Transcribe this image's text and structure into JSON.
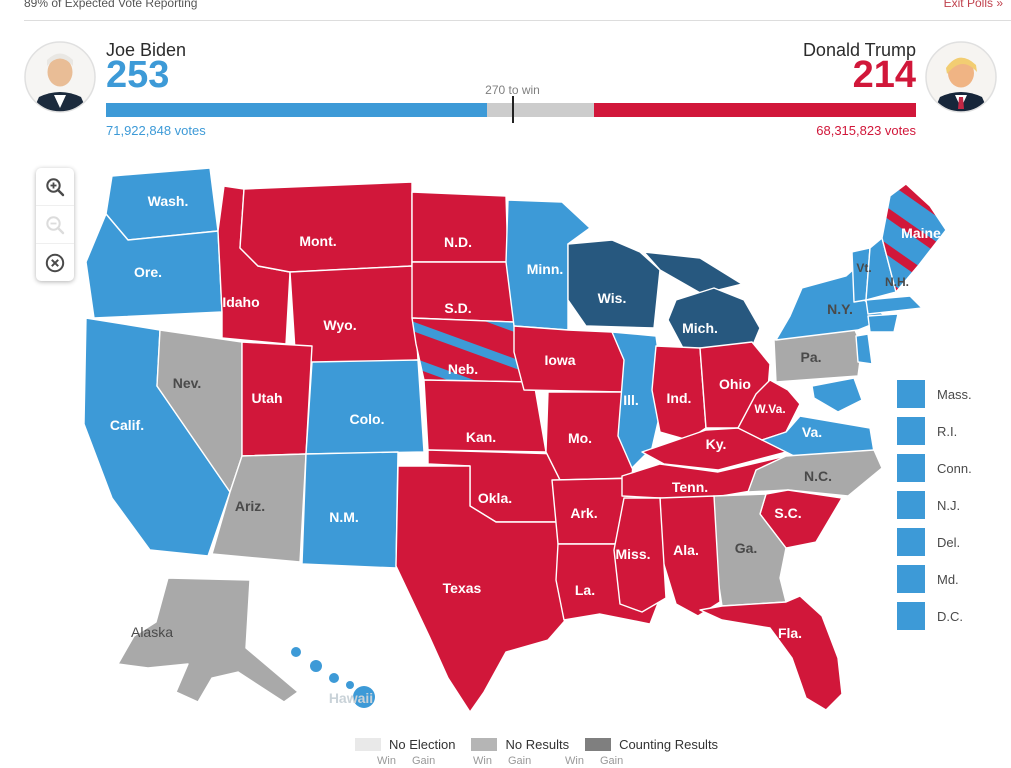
{
  "topbar": {
    "reporting": "89% of Expected Vote Reporting",
    "exit_polls": "Exit Polls »"
  },
  "candidates": {
    "biden": {
      "name": "Joe Biden",
      "electoral": "253",
      "votes": "71,922,848 votes"
    },
    "trump": {
      "name": "Donald Trump",
      "electoral": "214",
      "votes": "68,315,823 votes"
    }
  },
  "bar": {
    "dem": 253,
    "rep": 214,
    "total": 538,
    "threshold": 270,
    "threshold_label": "270 to win"
  },
  "colors": {
    "dem": "#3d9ad7",
    "dem_gain": "#27587f",
    "rep": "#d1173a",
    "map_gray": "#a9a9a9",
    "no_election": "#e9e9e9",
    "no_results": "#b5b5b5",
    "counting_results": "#7f7f7f",
    "bar_undecided": "#cccccc"
  },
  "icons": {
    "zoom_in": "magnifier-plus",
    "zoom_out": "magnifier-minus",
    "reset": "circle-x"
  },
  "map": {
    "states": {
      "wash": {
        "label": "Wash.",
        "status": "dem",
        "label_color": "light"
      },
      "ore": {
        "label": "Ore.",
        "status": "dem",
        "label_color": "light"
      },
      "calif": {
        "label": "Calif.",
        "status": "dem",
        "label_color": "light"
      },
      "nev": {
        "label": "Nev.",
        "status": "gray",
        "label_color": "dark"
      },
      "idaho": {
        "label": "Idaho",
        "status": "rep",
        "label_color": "light"
      },
      "mont": {
        "label": "Mont.",
        "status": "rep",
        "label_color": "light"
      },
      "wyo": {
        "label": "Wyo.",
        "status": "rep",
        "label_color": "light"
      },
      "utah": {
        "label": "Utah",
        "status": "rep",
        "label_color": "light"
      },
      "colo": {
        "label": "Colo.",
        "status": "dem",
        "label_color": "light"
      },
      "ariz": {
        "label": "Ariz.",
        "status": "gray",
        "label_color": "dark"
      },
      "nm": {
        "label": "N.M.",
        "status": "dem",
        "label_color": "light"
      },
      "nd": {
        "label": "N.D.",
        "status": "rep",
        "label_color": "light"
      },
      "sd": {
        "label": "S.D.",
        "status": "rep",
        "label_color": "light"
      },
      "neb": {
        "label": "Neb.",
        "status": "rep_dem_split",
        "label_color": "light"
      },
      "kan": {
        "label": "Kan.",
        "status": "rep",
        "label_color": "light"
      },
      "okla": {
        "label": "Okla.",
        "status": "rep",
        "label_color": "light"
      },
      "texas": {
        "label": "Texas",
        "status": "rep",
        "label_color": "light"
      },
      "minn": {
        "label": "Minn.",
        "status": "dem",
        "label_color": "light"
      },
      "iowa": {
        "label": "Iowa",
        "status": "rep",
        "label_color": "light"
      },
      "mo": {
        "label": "Mo.",
        "status": "rep",
        "label_color": "light"
      },
      "ark": {
        "label": "Ark.",
        "status": "rep",
        "label_color": "light"
      },
      "la": {
        "label": "La.",
        "status": "rep",
        "label_color": "light"
      },
      "wis": {
        "label": "Wis.",
        "status": "dem_gain",
        "label_color": "light"
      },
      "ill": {
        "label": "Ill.",
        "status": "dem",
        "label_color": "light"
      },
      "mich": {
        "label": "Mich.",
        "status": "dem_gain",
        "label_color": "light"
      },
      "ind": {
        "label": "Ind.",
        "status": "rep",
        "label_color": "light"
      },
      "ohio": {
        "label": "Ohio",
        "status": "rep",
        "label_color": "light"
      },
      "ky": {
        "label": "Ky.",
        "status": "rep",
        "label_color": "light"
      },
      "tenn": {
        "label": "Tenn.",
        "status": "rep",
        "label_color": "light"
      },
      "miss": {
        "label": "Miss.",
        "status": "rep",
        "label_color": "light"
      },
      "ala": {
        "label": "Ala.",
        "status": "rep",
        "label_color": "light"
      },
      "ga": {
        "label": "Ga.",
        "status": "gray",
        "label_color": "dark"
      },
      "fla": {
        "label": "Fla.",
        "status": "rep",
        "label_color": "light"
      },
      "sc": {
        "label": "S.C.",
        "status": "rep",
        "label_color": "light"
      },
      "nc": {
        "label": "N.C.",
        "status": "gray",
        "label_color": "dark"
      },
      "va": {
        "label": "Va.",
        "status": "dem",
        "label_color": "light"
      },
      "wva": {
        "label": "W.Va.",
        "status": "rep",
        "label_color": "light"
      },
      "pa": {
        "label": "Pa.",
        "status": "gray",
        "label_color": "dark"
      },
      "ny": {
        "label": "N.Y.",
        "status": "dem",
        "label_color": "dark"
      },
      "vt": {
        "label": "Vt.",
        "status": "dem",
        "label_color": "dark"
      },
      "nh": {
        "label": "N.H.",
        "status": "dem",
        "label_color": "dark"
      },
      "maine": {
        "label": "Maine",
        "status": "dem_rep_split",
        "label_color": "light"
      },
      "alaska": {
        "label": "Alaska",
        "status": "gray",
        "label_color": "dark"
      },
      "hawaii": {
        "label": "Hawaii",
        "status": "dem",
        "label_color": "faint"
      },
      "mass": {
        "label": "Mass.",
        "status": "dem"
      },
      "ri": {
        "label": "R.I.",
        "status": "dem"
      },
      "conn": {
        "label": "Conn.",
        "status": "dem"
      },
      "nj": {
        "label": "N.J.",
        "status": "dem"
      },
      "del": {
        "label": "Del.",
        "status": "dem"
      },
      "md": {
        "label": "Md.",
        "status": "dem"
      },
      "dc": {
        "label": "D.C.",
        "status": "dem"
      }
    },
    "small_states_order": [
      "mass",
      "ri",
      "conn",
      "nj",
      "del",
      "md",
      "dc"
    ]
  },
  "legend": {
    "items": [
      {
        "label": "No Election",
        "color_key": "no_election"
      },
      {
        "label": "No Results",
        "color_key": "no_results"
      },
      {
        "label": "Counting Results",
        "color_key": "counting_results"
      }
    ],
    "win_label": "Win",
    "gain_label": "Gain"
  }
}
